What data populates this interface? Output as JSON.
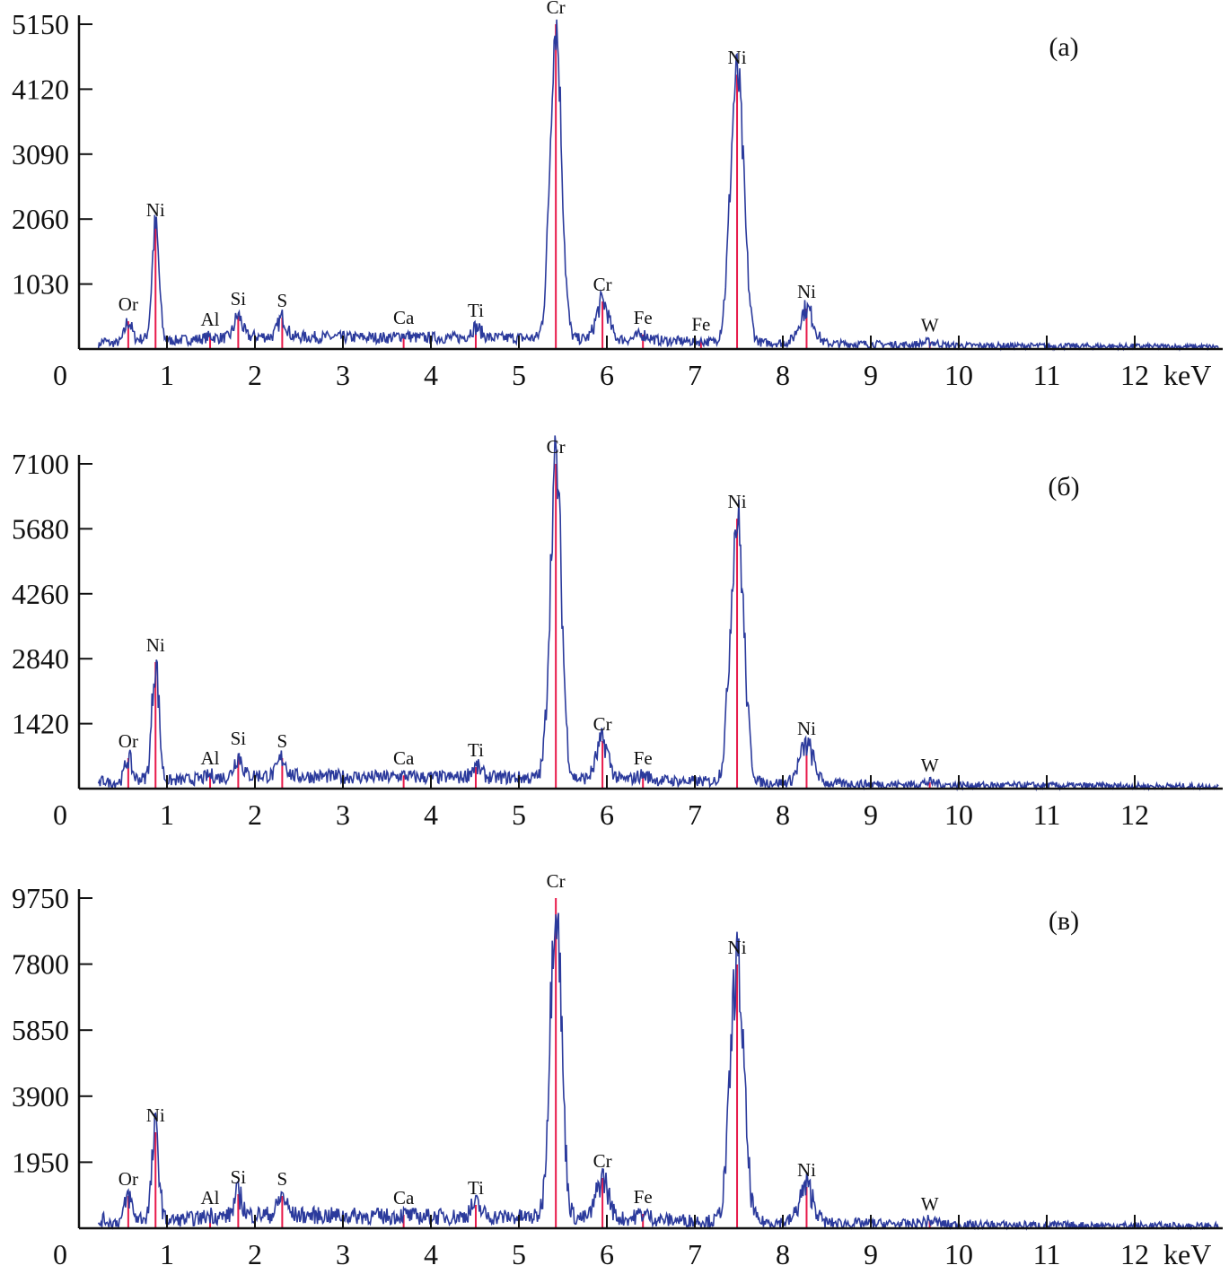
{
  "chart_data": [
    {
      "type": "line",
      "panel_label": "(а)",
      "xlabel": "keV",
      "xlim": [
        0,
        13
      ],
      "xticks": [
        "0",
        "1",
        "2",
        "3",
        "4",
        "5",
        "6",
        "7",
        "8",
        "9",
        "10",
        "11",
        "12"
      ],
      "ylim": [
        0,
        5150
      ],
      "yticks": [
        "1030",
        "2060",
        "3090",
        "4120",
        "5150"
      ],
      "background": [
        [
          0.25,
          60
        ],
        [
          0.7,
          160
        ],
        [
          1.0,
          130
        ],
        [
          1.5,
          170
        ],
        [
          2.0,
          200
        ],
        [
          2.6,
          190
        ],
        [
          3.5,
          180
        ],
        [
          5.0,
          175
        ],
        [
          6.2,
          150
        ],
        [
          7.2,
          110
        ],
        [
          8.6,
          85
        ],
        [
          10,
          55
        ],
        [
          12.9,
          35
        ]
      ],
      "peaks": [
        {
          "element": "",
          "energy": 0.28,
          "counts": 130
        },
        {
          "element": "Or",
          "energy": 0.56,
          "counts": 440
        },
        {
          "element": "Ni",
          "energy": 0.87,
          "counts": 1935
        },
        {
          "element": "Al",
          "energy": 1.49,
          "counts": 200
        },
        {
          "element": "Si",
          "energy": 1.81,
          "counts": 525
        },
        {
          "element": "S",
          "energy": 2.31,
          "counts": 500
        },
        {
          "element": "Ca",
          "energy": 3.69,
          "counts": 225
        },
        {
          "element": "Ti",
          "energy": 4.51,
          "counts": 340
        },
        {
          "element": "Cr",
          "energy": 5.42,
          "counts": 5150
        },
        {
          "element": "Cr",
          "energy": 5.95,
          "counts": 755
        },
        {
          "element": "Fe",
          "energy": 6.41,
          "counts": 230
        },
        {
          "element": "Fe",
          "energy": 7.07,
          "counts": 120
        },
        {
          "element": "Ni",
          "energy": 7.48,
          "counts": 4350
        },
        {
          "element": "Ni",
          "energy": 8.27,
          "counts": 640
        },
        {
          "element": "W",
          "energy": 9.67,
          "counts": 110
        }
      ]
    },
    {
      "type": "line",
      "panel_label": "(б)",
      "xlabel": "",
      "xlim": [
        0,
        13
      ],
      "xticks": [
        "0",
        "1",
        "2",
        "3",
        "4",
        "5",
        "6",
        "7",
        "8",
        "9",
        "10",
        "11",
        "12"
      ],
      "ylim": [
        0,
        7100
      ],
      "yticks": [
        "1420",
        "2840",
        "4260",
        "5680",
        "7100"
      ],
      "background": [
        [
          0.25,
          80
        ],
        [
          0.7,
          220
        ],
        [
          1.0,
          170
        ],
        [
          1.5,
          230
        ],
        [
          2.0,
          290
        ],
        [
          2.6,
          270
        ],
        [
          3.5,
          250
        ],
        [
          5.0,
          240
        ],
        [
          6.2,
          200
        ],
        [
          7.2,
          150
        ],
        [
          8.6,
          110
        ],
        [
          10,
          75
        ],
        [
          12.9,
          45
        ]
      ],
      "peaks": [
        {
          "element": "",
          "energy": 0.28,
          "counts": 180
        },
        {
          "element": "Or",
          "energy": 0.56,
          "counts": 667
        },
        {
          "element": "Ni",
          "energy": 0.87,
          "counts": 2765
        },
        {
          "element": "Al",
          "energy": 1.49,
          "counts": 290
        },
        {
          "element": "Si",
          "energy": 1.81,
          "counts": 725
        },
        {
          "element": "S",
          "energy": 2.31,
          "counts": 667
        },
        {
          "element": "Ca",
          "energy": 3.69,
          "counts": 290
        },
        {
          "element": "Ti",
          "energy": 4.51,
          "counts": 470
        },
        {
          "element": "Cr",
          "energy": 5.42,
          "counts": 7100
        },
        {
          "element": "Cr",
          "energy": 5.95,
          "counts": 1040
        },
        {
          "element": "Fe",
          "energy": 6.41,
          "counts": 295
        },
        {
          "element": "Ni",
          "energy": 7.48,
          "counts": 5900
        },
        {
          "element": "Ni",
          "energy": 8.27,
          "counts": 940
        },
        {
          "element": "W",
          "energy": 9.67,
          "counts": 137
        }
      ]
    },
    {
      "type": "line",
      "panel_label": "(в)",
      "xlabel": "keV",
      "xlim": [
        0,
        13
      ],
      "xticks": [
        "0",
        "1",
        "2",
        "3",
        "4",
        "5",
        "6",
        "7",
        "8",
        "9",
        "10",
        "11",
        "12"
      ],
      "ylim": [
        0,
        9750
      ],
      "yticks": [
        "1950",
        "3900",
        "5850",
        "7800",
        "9750"
      ],
      "background": [
        [
          0.25,
          110
        ],
        [
          0.7,
          300
        ],
        [
          1.0,
          230
        ],
        [
          1.5,
          320
        ],
        [
          2.0,
          400
        ],
        [
          2.6,
          380
        ],
        [
          3.5,
          350
        ],
        [
          5.0,
          330
        ],
        [
          6.2,
          280
        ],
        [
          7.2,
          210
        ],
        [
          8.6,
          150
        ],
        [
          10,
          100
        ],
        [
          12.9,
          60
        ]
      ],
      "peaks": [
        {
          "element": "",
          "energy": 0.28,
          "counts": 250
        },
        {
          "element": "Or",
          "energy": 0.56,
          "counts": 954
        },
        {
          "element": "Ni",
          "energy": 0.87,
          "counts": 2835
        },
        {
          "element": "Al",
          "energy": 1.49,
          "counts": 400
        },
        {
          "element": "Si",
          "energy": 1.81,
          "counts": 1007
        },
        {
          "element": "S",
          "energy": 2.31,
          "counts": 954
        },
        {
          "element": "Ca",
          "energy": 3.69,
          "counts": 400
        },
        {
          "element": "Ti",
          "energy": 4.51,
          "counts": 690
        },
        {
          "element": "Cr",
          "energy": 5.42,
          "counts": 9750
        },
        {
          "element": "Cr",
          "energy": 5.95,
          "counts": 1484
        },
        {
          "element": "Fe",
          "energy": 6.41,
          "counts": 424
        },
        {
          "element": "Ni",
          "energy": 7.48,
          "counts": 7790
        },
        {
          "element": "Ni",
          "energy": 8.27,
          "counts": 1219
        },
        {
          "element": "W",
          "energy": 9.67,
          "counts": 212
        }
      ]
    }
  ],
  "colors": {
    "spectrum": "#2b3a9c",
    "marker": "#e8194a",
    "axis": "#111111"
  }
}
